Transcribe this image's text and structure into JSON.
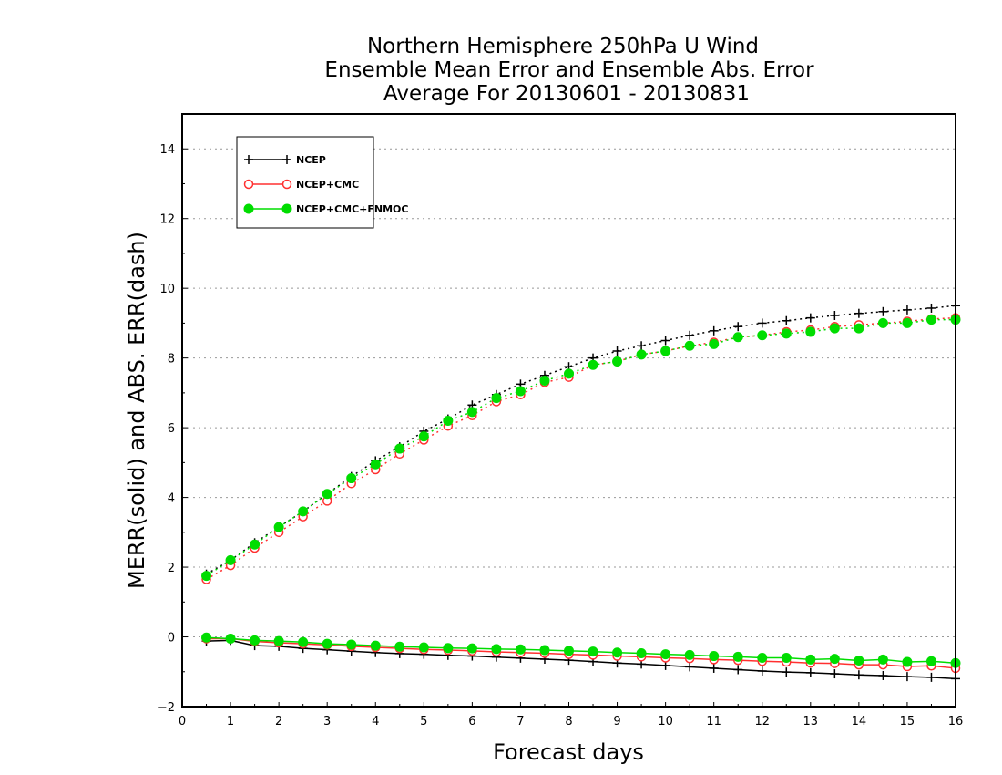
{
  "chart_data": {
    "type": "line",
    "title": [
      "Northern Hemisphere 250hPa U Wind",
      "Ensemble Mean Error and Ensemble Abs. Error",
      "Average For 20130601 - 20130831"
    ],
    "xlabel": "Forecast days",
    "ylabel": "MERR(solid) and ABS. ERR(dash)",
    "xlim": [
      0,
      16
    ],
    "ylim": [
      -2,
      15
    ],
    "xticks": [
      "0",
      "1",
      "2",
      "3",
      "4",
      "5",
      "6",
      "7",
      "8",
      "9",
      "10",
      "11",
      "12",
      "13",
      "14",
      "15",
      "16"
    ],
    "yticks": [
      "−2",
      "0",
      "2",
      "4",
      "6",
      "8",
      "10",
      "12",
      "14"
    ],
    "grid": "horizontal dotted",
    "legend_position": "top-left",
    "x": [
      0.5,
      1,
      1.5,
      2,
      2.5,
      3,
      3.5,
      4,
      4.5,
      5,
      5.5,
      6,
      6.5,
      7,
      7.5,
      8,
      8.5,
      9,
      9.5,
      10,
      10.5,
      11,
      11.5,
      12,
      12.5,
      13,
      13.5,
      14,
      14.5,
      15,
      15.5,
      16
    ],
    "series": [
      {
        "name": "NCEP",
        "color": "#000000",
        "marker": "plus",
        "merr": [
          -0.12,
          -0.1,
          -0.25,
          -0.27,
          -0.33,
          -0.37,
          -0.41,
          -0.45,
          -0.48,
          -0.5,
          -0.53,
          -0.55,
          -0.58,
          -0.61,
          -0.64,
          -0.67,
          -0.71,
          -0.75,
          -0.78,
          -0.82,
          -0.86,
          -0.9,
          -0.94,
          -0.98,
          -1.01,
          -1.03,
          -1.06,
          -1.09,
          -1.11,
          -1.14,
          -1.16,
          -1.2
        ],
        "abs_err": [
          1.8,
          2.2,
          2.7,
          3.15,
          3.6,
          4.1,
          4.6,
          5.05,
          5.45,
          5.9,
          6.25,
          6.65,
          6.95,
          7.25,
          7.5,
          7.75,
          8.0,
          8.2,
          8.35,
          8.5,
          8.65,
          8.78,
          8.9,
          9.0,
          9.07,
          9.15,
          9.22,
          9.28,
          9.33,
          9.38,
          9.43,
          9.5
        ]
      },
      {
        "name": "NCEP+CMC",
        "color": "#ff3030",
        "marker": "open-circle",
        "merr": [
          -0.05,
          -0.05,
          -0.13,
          -0.17,
          -0.2,
          -0.23,
          -0.27,
          -0.3,
          -0.33,
          -0.36,
          -0.38,
          -0.4,
          -0.43,
          -0.45,
          -0.47,
          -0.5,
          -0.52,
          -0.55,
          -0.57,
          -0.6,
          -0.62,
          -0.65,
          -0.67,
          -0.7,
          -0.72,
          -0.75,
          -0.76,
          -0.8,
          -0.8,
          -0.85,
          -0.83,
          -0.9
        ],
        "abs_err": [
          1.65,
          2.05,
          2.55,
          3.0,
          3.45,
          3.9,
          4.4,
          4.8,
          5.25,
          5.65,
          6.05,
          6.35,
          6.75,
          6.95,
          7.3,
          7.45,
          7.8,
          7.9,
          8.1,
          8.2,
          8.35,
          8.45,
          8.6,
          8.65,
          8.75,
          8.8,
          8.9,
          8.95,
          9.0,
          9.05,
          9.12,
          9.15
        ]
      },
      {
        "name": "NCEP+CMC+FNMOC",
        "color": "#00dd00",
        "marker": "filled-circle",
        "merr": [
          -0.02,
          -0.05,
          -0.1,
          -0.12,
          -0.15,
          -0.2,
          -0.22,
          -0.25,
          -0.28,
          -0.3,
          -0.32,
          -0.33,
          -0.35,
          -0.36,
          -0.38,
          -0.4,
          -0.42,
          -0.45,
          -0.47,
          -0.5,
          -0.52,
          -0.55,
          -0.57,
          -0.6,
          -0.6,
          -0.65,
          -0.63,
          -0.68,
          -0.65,
          -0.72,
          -0.7,
          -0.75
        ],
        "abs_err": [
          1.75,
          2.2,
          2.65,
          3.15,
          3.6,
          4.1,
          4.55,
          4.95,
          5.4,
          5.75,
          6.2,
          6.45,
          6.85,
          7.05,
          7.35,
          7.55,
          7.8,
          7.9,
          8.1,
          8.2,
          8.35,
          8.4,
          8.6,
          8.65,
          8.7,
          8.75,
          8.85,
          8.85,
          9.0,
          9.0,
          9.1,
          9.1
        ]
      }
    ]
  }
}
